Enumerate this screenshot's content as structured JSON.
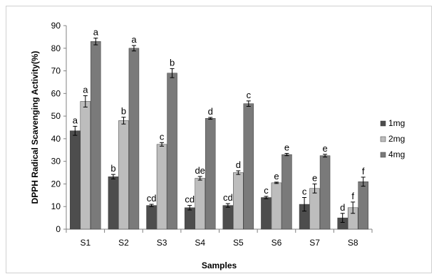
{
  "chart_data": {
    "type": "bar",
    "title": "",
    "xlabel": "Samples",
    "ylabel": "DPPH Radical Scavenging Activity(%)",
    "ylim": [
      0,
      90
    ],
    "yticks": [
      0,
      10,
      20,
      30,
      40,
      50,
      60,
      70,
      80,
      90
    ],
    "grid": false,
    "legend_position": "right",
    "categories": [
      "S1",
      "S2",
      "S3",
      "S4",
      "S5",
      "S6",
      "S7",
      "S8"
    ],
    "series": [
      {
        "name": "1mg",
        "color": "#4d4d4d",
        "values": [
          43.5,
          23.2,
          10.5,
          9.5,
          10.5,
          14.0,
          11.0,
          5.0
        ],
        "errors": [
          2.0,
          1.0,
          0.5,
          1.0,
          0.8,
          0.5,
          3.0,
          2.0
        ],
        "labels": [
          "a",
          "b",
          "cd",
          "cd",
          "cd",
          "c",
          "c",
          "d"
        ]
      },
      {
        "name": "2mg",
        "color": "#bdbdbd",
        "values": [
          56.5,
          48.0,
          37.5,
          22.5,
          25.0,
          20.5,
          18.0,
          9.5
        ],
        "errors": [
          2.5,
          1.5,
          0.8,
          0.8,
          0.8,
          0.3,
          2.0,
          2.5
        ],
        "labels": [
          "a",
          "b",
          "c",
          "de",
          "d",
          "e",
          "e",
          "f"
        ]
      },
      {
        "name": "4mg",
        "color": "#7a7a7a",
        "values": [
          83.0,
          80.0,
          69.0,
          49.0,
          55.5,
          33.0,
          32.5,
          21.0
        ],
        "errors": [
          1.5,
          1.2,
          2.0,
          0.4,
          1.2,
          0.5,
          0.6,
          2.0
        ],
        "labels": [
          "a",
          "a",
          "b",
          "d",
          "c",
          "e",
          "e",
          "f"
        ]
      }
    ]
  }
}
